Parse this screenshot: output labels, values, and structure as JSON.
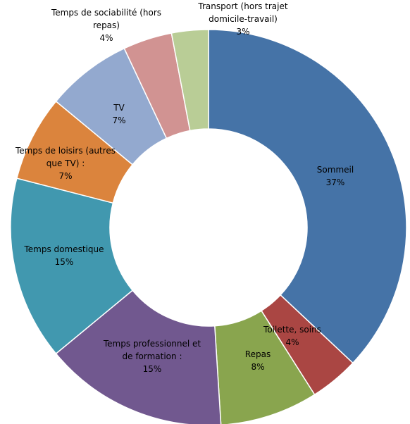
{
  "chart_data": {
    "type": "pie",
    "donut": true,
    "title": "",
    "legend": "none",
    "slices": [
      {
        "label_lines": [
          "Sommeil"
        ],
        "pct_text": "37%",
        "value": 37,
        "color": "#4573A7"
      },
      {
        "label_lines": [
          "Toilette, soins"
        ],
        "pct_text": "4%",
        "value": 4,
        "color": "#AA4643"
      },
      {
        "label_lines": [
          "Repas"
        ],
        "pct_text": "8%",
        "value": 8,
        "color": "#89A54E"
      },
      {
        "label_lines": [
          "Temps professionnel et",
          "de formation :"
        ],
        "pct_text": "15%",
        "value": 15,
        "color": "#71588F"
      },
      {
        "label_lines": [
          "Temps domestique"
        ],
        "pct_text": "15%",
        "value": 15,
        "color": "#4198AF"
      },
      {
        "label_lines": [
          "Temps de loisirs (autres",
          "que TV) :"
        ],
        "pct_text": "7%",
        "value": 7,
        "color": "#DB843D"
      },
      {
        "label_lines": [
          "TV"
        ],
        "pct_text": "7%",
        "value": 7,
        "color": "#93A9CF"
      },
      {
        "label_lines": [
          "Temps de sociabilité (hors",
          "repas)"
        ],
        "pct_text": "4%",
        "value": 4,
        "color": "#D19392"
      },
      {
        "label_lines": [
          "Transport (hors trajet",
          "domicile-travail)"
        ],
        "pct_text": "3%",
        "value": 3,
        "color": "#B9CD96"
      }
    ]
  }
}
